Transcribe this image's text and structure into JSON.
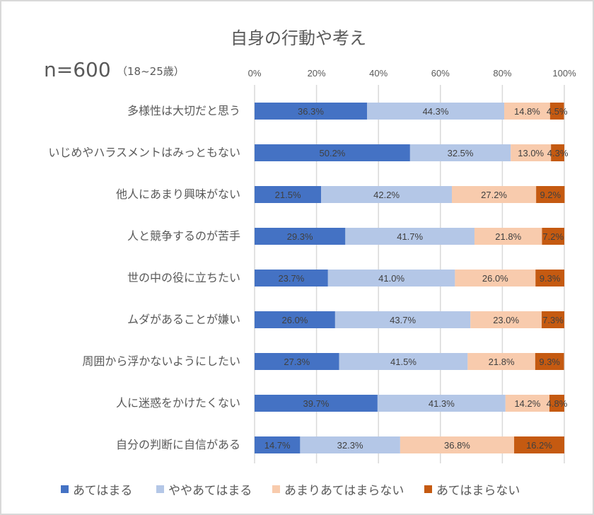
{
  "chart_data": {
    "type": "bar",
    "orientation": "horizontal",
    "stacked": "percent",
    "title": "自身の行動や考え",
    "sample_label": "n=600",
    "sample_sub": "（18~25歳）",
    "xlim": [
      0,
      100
    ],
    "x_ticks": [
      "0%",
      "20%",
      "40%",
      "60%",
      "80%",
      "100%"
    ],
    "grid": true,
    "legend_position": "bottom",
    "categories": [
      "多様性は大切だと思う",
      "いじめやハラスメントはみっともない",
      "他人にあまり興味がない",
      "人と競争するのが苦手",
      "世の中の役に立ちたい",
      "ムダがあることが嫌い",
      "周囲から浮かないようにしたい",
      "人に迷惑をかけたくない",
      "自分の判断に自信がある"
    ],
    "series": [
      {
        "name": "あてはまる",
        "color": "#4472c4",
        "values": [
          36.3,
          50.2,
          21.5,
          29.3,
          23.7,
          26.0,
          27.3,
          39.7,
          14.7
        ],
        "labels": [
          "36.3%",
          "50.2%",
          "21.5%",
          "29.3%",
          "23.7%",
          "26.0%",
          "27.3%",
          "39.7%",
          "14.7%"
        ]
      },
      {
        "name": "ややあてはまる",
        "color": "#b4c7e7",
        "values": [
          44.3,
          32.5,
          42.2,
          41.7,
          41.0,
          43.7,
          41.5,
          41.3,
          32.3
        ],
        "labels": [
          "44.3%",
          "32.5%",
          "42.2%",
          "41.7%",
          "41.0%",
          "43.7%",
          "41.5%",
          "41.3%",
          "32.3%"
        ]
      },
      {
        "name": "あまりあてはまらない",
        "color": "#f8cbad",
        "values": [
          14.8,
          13.0,
          27.2,
          21.8,
          26.0,
          23.0,
          21.8,
          14.2,
          36.8
        ],
        "labels": [
          "14.8%",
          "13.0%",
          "27.2%",
          "21.8%",
          "26.0%",
          "23.0%",
          "21.8%",
          "14.2%",
          "36.8%"
        ]
      },
      {
        "name": "あてはまらない",
        "color": "#c55a11",
        "values": [
          4.5,
          4.3,
          9.2,
          7.2,
          9.3,
          7.3,
          9.3,
          4.8,
          16.2
        ],
        "labels": [
          "4.5%",
          "4.3%",
          "9.2%",
          "7.2%",
          "9.3%",
          "7.3%",
          "9.3%",
          "4.8%",
          "16.2%"
        ]
      }
    ]
  },
  "colors": {
    "gridline": "#d9d9d9",
    "text": "#595959"
  }
}
